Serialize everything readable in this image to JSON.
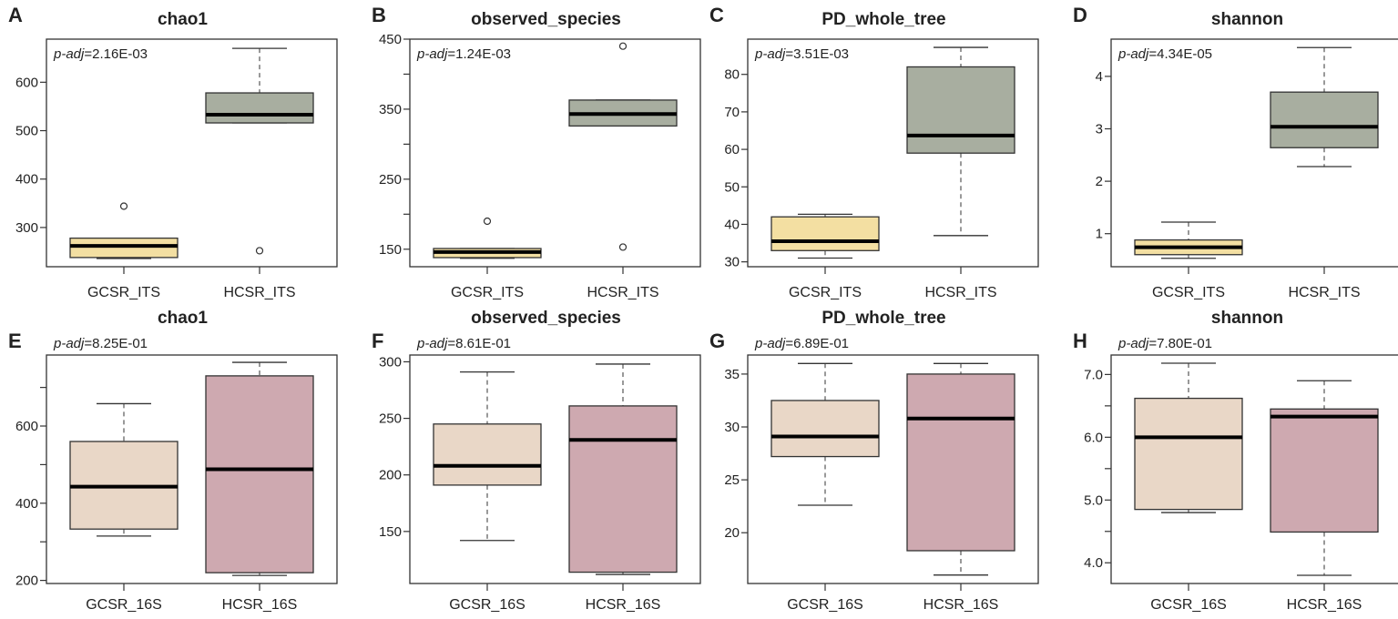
{
  "chart_data": [
    {
      "type": "box",
      "panel": "A",
      "title": "chao1",
      "p_label": "p-adj",
      "p_sep": "=",
      "p_value": "2.16E-03",
      "ylim": [
        219,
        689
      ],
      "yticks": [
        300,
        400,
        500,
        600
      ],
      "ytick_labels": [
        "300",
        "400",
        "500",
        "600"
      ],
      "categories": [
        "GCSR_ITS",
        "HCSR_ITS"
      ],
      "colors": [
        "#F3DFA2",
        "#A8AEA0"
      ],
      "boxes": [
        {
          "low": 236,
          "q1": 238,
          "median": 262,
          "q3": 278,
          "high": 278,
          "outliers": [
            344
          ]
        },
        {
          "low": 516,
          "q1": 516,
          "median": 533,
          "q3": 578,
          "high": 670,
          "outliers": [
            252
          ]
        }
      ]
    },
    {
      "type": "box",
      "panel": "B",
      "title": "observed_species",
      "p_label": "p-adj",
      "p_sep": "=",
      "p_value": "1.24E-03",
      "ylim": [
        125,
        450
      ],
      "yticks": [
        150,
        200,
        250,
        300,
        350,
        400,
        450
      ],
      "ytick_labels": [
        "150",
        "",
        "250",
        "",
        "350",
        "",
        "450"
      ],
      "categories": [
        "GCSR_ITS",
        "HCSR_ITS"
      ],
      "colors": [
        "#F3DFA2",
        "#A8AEA0"
      ],
      "boxes": [
        {
          "low": 137,
          "q1": 138,
          "median": 146,
          "q3": 151,
          "high": 151,
          "outliers": [
            190
          ]
        },
        {
          "low": 326,
          "q1": 326,
          "median": 343,
          "q3": 363,
          "high": 363,
          "outliers": [
            440,
            153
          ]
        }
      ]
    },
    {
      "type": "box",
      "panel": "C",
      "title": "PD_whole_tree",
      "p_label": "p-adj",
      "p_sep": "=",
      "p_value": "3.51E-03",
      "ylim": [
        28.7,
        89.4
      ],
      "yticks": [
        30,
        40,
        50,
        60,
        70,
        80
      ],
      "ytick_labels": [
        "30",
        "40",
        "50",
        "60",
        "70",
        "80"
      ],
      "categories": [
        "GCSR_ITS",
        "HCSR_ITS"
      ],
      "colors": [
        "#F3DFA2",
        "#A8AEA0"
      ],
      "boxes": [
        {
          "low": 31,
          "q1": 33,
          "median": 35.5,
          "q3": 42,
          "high": 42.7,
          "outliers": []
        },
        {
          "low": 37,
          "q1": 59,
          "median": 63.7,
          "q3": 82,
          "high": 87.2,
          "outliers": []
        }
      ]
    },
    {
      "type": "box",
      "panel": "D",
      "title": "shannon",
      "p_label": "p-adj",
      "p_sep": "=",
      "p_value": "4.34E-05",
      "ylim": [
        0.37,
        4.71
      ],
      "yticks": [
        1,
        2,
        3,
        4
      ],
      "ytick_labels": [
        "1",
        "2",
        "3",
        "4"
      ],
      "categories": [
        "GCSR_ITS",
        "HCSR_ITS"
      ],
      "colors": [
        "#F3DFA2",
        "#A8AEA0"
      ],
      "boxes": [
        {
          "low": 0.53,
          "q1": 0.6,
          "median": 0.74,
          "q3": 0.88,
          "high": 1.22,
          "outliers": []
        },
        {
          "low": 2.28,
          "q1": 2.64,
          "median": 3.04,
          "q3": 3.7,
          "high": 4.55,
          "outliers": []
        }
      ]
    },
    {
      "type": "box",
      "panel": "E",
      "title": "chao1",
      "p_label": "p-adj",
      "p_sep": "=",
      "p_value": "8.25E-01",
      "ylim": [
        192,
        784
      ],
      "yticks": [
        200,
        300,
        400,
        500,
        600,
        700
      ],
      "ytick_labels": [
        "200",
        "",
        "400",
        "",
        "600",
        ""
      ],
      "categories": [
        "GCSR_16S",
        "HCSR_16S"
      ],
      "colors": [
        "#E9D7C7",
        "#CEA9B0"
      ],
      "boxes": [
        {
          "low": 315,
          "q1": 333,
          "median": 443,
          "q3": 560,
          "high": 658,
          "outliers": []
        },
        {
          "low": 213,
          "q1": 220,
          "median": 488,
          "q3": 730,
          "high": 765,
          "outliers": []
        }
      ]
    },
    {
      "type": "box",
      "panel": "F",
      "title": "observed_species",
      "p_label": "p-adj",
      "p_sep": "=",
      "p_value": "8.61E-01",
      "ylim": [
        104,
        306
      ],
      "yticks": [
        150,
        200,
        250,
        300
      ],
      "ytick_labels": [
        "150",
        "200",
        "250",
        "300"
      ],
      "categories": [
        "GCSR_16S",
        "HCSR_16S"
      ],
      "colors": [
        "#E9D7C7",
        "#CEA9B0"
      ],
      "boxes": [
        {
          "low": 142,
          "q1": 191,
          "median": 208,
          "q3": 245,
          "high": 291,
          "outliers": []
        },
        {
          "low": 112,
          "q1": 114,
          "median": 231,
          "q3": 261,
          "high": 298,
          "outliers": []
        }
      ]
    },
    {
      "type": "box",
      "panel": "G",
      "title": "PD_whole_tree",
      "p_label": "p-adj",
      "p_sep": "=",
      "p_value": "6.89E-01",
      "ylim": [
        15.2,
        36.8
      ],
      "yticks": [
        20,
        25,
        30,
        35
      ],
      "ytick_labels": [
        "20",
        "25",
        "30",
        "35"
      ],
      "categories": [
        "GCSR_16S",
        "HCSR_16S"
      ],
      "colors": [
        "#E9D7C7",
        "#CEA9B0"
      ],
      "boxes": [
        {
          "low": 22.6,
          "q1": 27.2,
          "median": 29.1,
          "q3": 32.5,
          "high": 36,
          "outliers": []
        },
        {
          "low": 16,
          "q1": 18.3,
          "median": 30.8,
          "q3": 35,
          "high": 36,
          "outliers": []
        }
      ]
    },
    {
      "type": "box",
      "panel": "H",
      "title": "shannon",
      "p_label": "p-adj",
      "p_sep": "=",
      "p_value": "7.80E-01",
      "ylim": [
        3.67,
        7.31
      ],
      "yticks": [
        4,
        4.5,
        5,
        5.5,
        6,
        6.5,
        7
      ],
      "ytick_labels": [
        "4.0",
        "",
        "5.0",
        "",
        "6.0",
        "",
        "7.0"
      ],
      "categories": [
        "GCSR_16S",
        "HCSR_16S"
      ],
      "colors": [
        "#E9D7C7",
        "#CEA9B0"
      ],
      "boxes": [
        {
          "low": 4.8,
          "q1": 4.85,
          "median": 6.0,
          "q3": 6.62,
          "high": 7.18,
          "outliers": []
        },
        {
          "low": 3.8,
          "q1": 4.49,
          "median": 6.33,
          "q3": 6.45,
          "high": 6.9,
          "outliers": []
        }
      ]
    }
  ]
}
